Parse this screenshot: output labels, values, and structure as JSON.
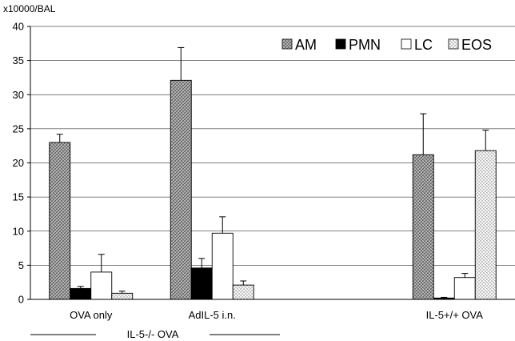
{
  "chart_data": {
    "type": "bar",
    "ylabel": "x10000/BAL",
    "ylim": [
      0,
      40
    ],
    "yticks": [
      0,
      5,
      10,
      15,
      20,
      25,
      30,
      35,
      40
    ],
    "grid": true,
    "legend_position": "top-right",
    "categories": [
      "OVA only",
      "AdIL-5 i.n.",
      "",
      "IL-5+/+ OVA"
    ],
    "group_label": "IL-5-/- OVA",
    "series": [
      {
        "name": "AM",
        "pattern": "crosshatch",
        "values": [
          23.0,
          32.1,
          null,
          21.2
        ],
        "errors": [
          1.2,
          4.8,
          null,
          6.0
        ]
      },
      {
        "name": "PMN",
        "pattern": "solid",
        "values": [
          1.6,
          4.6,
          null,
          0.2
        ],
        "errors": [
          0.3,
          1.4,
          null,
          0.1
        ]
      },
      {
        "name": "LC",
        "pattern": "open",
        "values": [
          4.0,
          9.7,
          null,
          3.2
        ],
        "errors": [
          2.6,
          2.4,
          null,
          0.6
        ]
      },
      {
        "name": "EOS",
        "pattern": "dotted",
        "values": [
          0.9,
          2.1,
          null,
          21.8
        ],
        "errors": [
          0.3,
          0.6,
          null,
          3.0
        ]
      }
    ]
  }
}
